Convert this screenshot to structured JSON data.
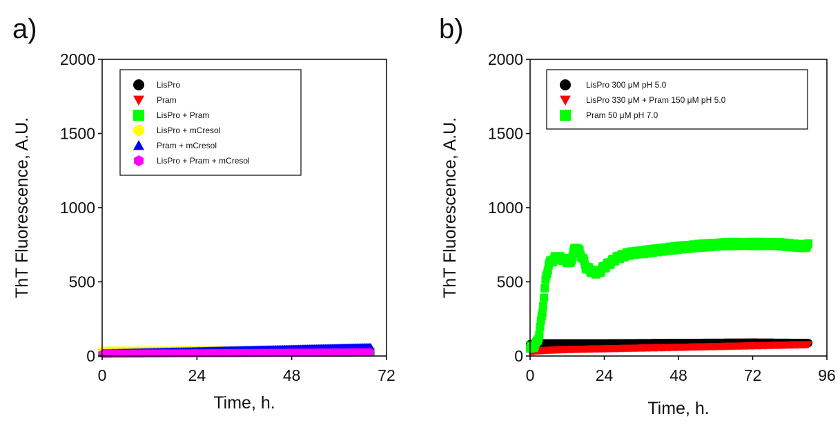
{
  "chart_data": [
    {
      "type": "scatter",
      "panel_label": "a)",
      "xlabel": "Time, h.",
      "ylabel": "ThT Fluorescence, A.U.",
      "xlim": [
        0,
        72
      ],
      "ylim": [
        0,
        2000
      ],
      "xticks": [
        0,
        24,
        48,
        72
      ],
      "yticks": [
        0,
        500,
        1000,
        1500,
        2000
      ],
      "legend_position": "top-left",
      "series": [
        {
          "name": "LisPro",
          "marker": "circle",
          "color": "#000000",
          "x": [
            0,
            68
          ],
          "y": [
            20,
            25
          ]
        },
        {
          "name": "Pram",
          "marker": "triangle-down",
          "color": "#ff0000",
          "x": [
            0,
            68
          ],
          "y": [
            15,
            25
          ]
        },
        {
          "name": "LisPro + Pram",
          "marker": "square",
          "color": "#00ff00",
          "x": [
            0,
            68
          ],
          "y": [
            20,
            30
          ]
        },
        {
          "name": "LisPro + mCresol",
          "marker": "circle",
          "color": "#ffff00",
          "x": [
            0,
            68
          ],
          "y": [
            35,
            40
          ]
        },
        {
          "name": "Pram + mCresol",
          "marker": "triangle-up",
          "color": "#0000ff",
          "x": [
            0,
            68
          ],
          "y": [
            20,
            60
          ]
        },
        {
          "name": "LisPro + Pram + mCresol",
          "marker": "hexagon",
          "color": "#ff00ff",
          "x": [
            0,
            68
          ],
          "y": [
            15,
            25
          ]
        }
      ]
    },
    {
      "type": "scatter",
      "panel_label": "b)",
      "xlabel": "Time, h.",
      "ylabel": "ThT Fluorescence, A.U.",
      "xlim": [
        0,
        96
      ],
      "ylim": [
        0,
        2000
      ],
      "xticks": [
        0,
        24,
        48,
        72,
        96
      ],
      "yticks": [
        0,
        500,
        1000,
        1500,
        2000
      ],
      "legend_position": "top-left",
      "series": [
        {
          "name": "LisPro 300 μM pH 5.0",
          "marker": "circle",
          "color": "#000000",
          "x": [
            0,
            3,
            6,
            12,
            24,
            48,
            72,
            90
          ],
          "y": [
            80,
            85,
            85,
            85,
            85,
            88,
            90,
            88
          ]
        },
        {
          "name": "LisPro 330 μM + Pram 150 μM pH 5.0",
          "marker": "triangle-down",
          "color": "#ff0000",
          "x": [
            0,
            2,
            6,
            12,
            24,
            48,
            72,
            90
          ],
          "y": [
            30,
            35,
            40,
            45,
            50,
            60,
            70,
            78
          ]
        },
        {
          "name": "Pram 50 μM pH 7.0",
          "marker": "square",
          "color": "#00ff00",
          "x": [
            0,
            2,
            3,
            4,
            5,
            6,
            8,
            10,
            12,
            13,
            14,
            15,
            16,
            17,
            18,
            20,
            22,
            24,
            28,
            32,
            36,
            40,
            48,
            56,
            64,
            72,
            80,
            88,
            90
          ],
          "y": [
            50,
            80,
            150,
            300,
            500,
            620,
            660,
            660,
            640,
            620,
            700,
            740,
            700,
            660,
            600,
            570,
            560,
            600,
            660,
            690,
            700,
            710,
            730,
            745,
            755,
            755,
            755,
            740,
            745
          ]
        }
      ]
    }
  ]
}
